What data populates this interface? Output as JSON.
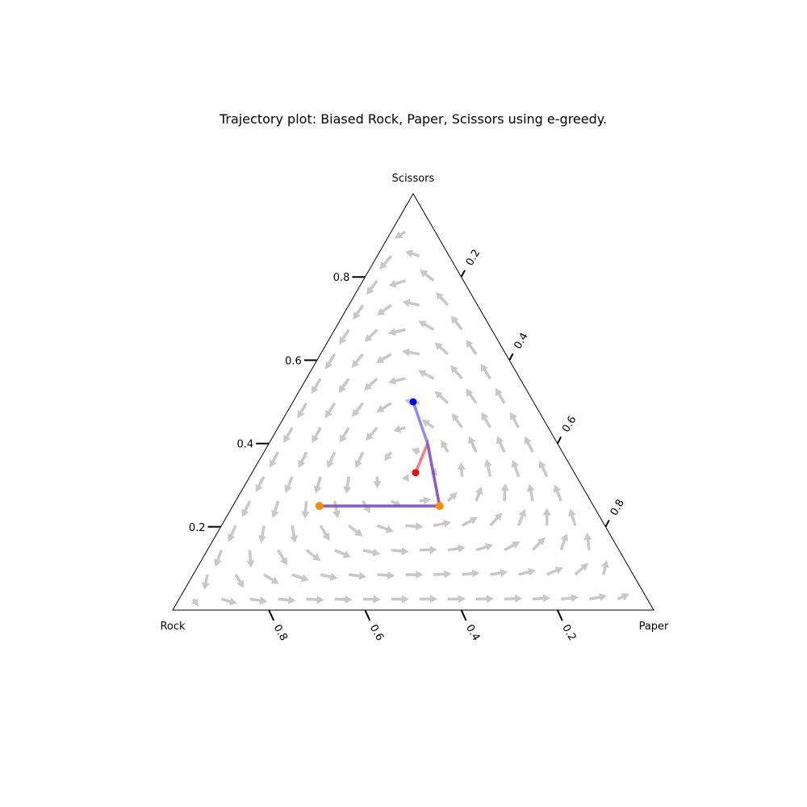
{
  "chart_data": {
    "type": "ternary-trajectory",
    "title": "Trajectory plot: Biased Rock, Paper, Scissors using e-greedy.",
    "vertices": {
      "left": "Rock",
      "right": "Paper",
      "top": "Scissors"
    },
    "ticks": {
      "left": [
        "0.2",
        "0.4",
        "0.6",
        "0.8"
      ],
      "right": [
        "0.2",
        "0.4",
        "0.6",
        "0.8"
      ],
      "bottom": [
        "0.8",
        "0.6",
        "0.4",
        "0.2"
      ]
    },
    "background_field": {
      "shown": true,
      "color": "#c8c8c8"
    },
    "series": [
      {
        "color": "#ff3333",
        "start_color": "#ff0000",
        "points": [
          {
            "rock": 0.33,
            "paper": 0.34,
            "scissors": 0.33
          },
          {
            "rock": 0.27,
            "paper": 0.33,
            "scissors": 0.4
          },
          {
            "rock": 0.32,
            "paper": 0.43,
            "scissors": 0.25
          },
          {
            "rock": 0.57,
            "paper": 0.18,
            "scissors": 0.25
          }
        ]
      },
      {
        "color": "#4d4dff",
        "start_color": "#0000ff",
        "points": [
          {
            "rock": 0.25,
            "paper": 0.25,
            "scissors": 0.5
          },
          {
            "rock": 0.27,
            "paper": 0.33,
            "scissors": 0.4
          },
          {
            "rock": 0.32,
            "paper": 0.43,
            "scissors": 0.25
          },
          {
            "rock": 0.57,
            "paper": 0.18,
            "scissors": 0.25
          }
        ]
      }
    ],
    "end_markers": {
      "color": "#ff8c00",
      "points": [
        {
          "rock": 0.32,
          "paper": 0.43,
          "scissors": 0.25
        },
        {
          "rock": 0.57,
          "paper": 0.18,
          "scissors": 0.25
        }
      ]
    }
  }
}
